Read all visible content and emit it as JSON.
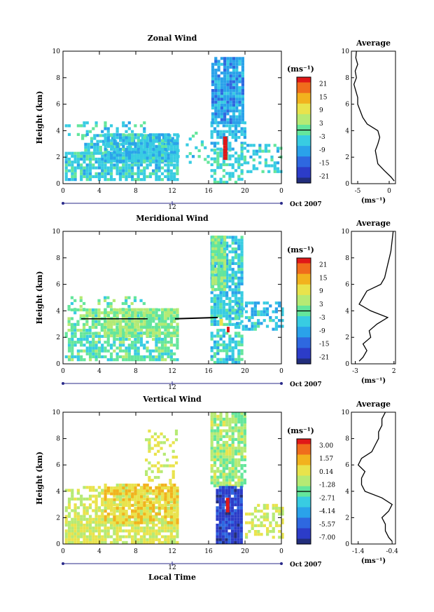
{
  "chart_data": [
    {
      "type": "heatmap",
      "title": "Zonal Wind",
      "ylabel": "Height (km)",
      "xlabel": "",
      "x_ticks": [
        "0",
        "4",
        "8",
        "12",
        "16",
        "20",
        "0"
      ],
      "y_ticks": [
        "0",
        "2",
        "4",
        "6",
        "8",
        "10"
      ],
      "xlim": [
        0,
        24
      ],
      "ylim": [
        0,
        10
      ],
      "date_marker": "12",
      "date_label": "Oct 2007",
      "colorbar": {
        "unit": "(ms⁻¹)",
        "ticks": [
          "21",
          "15",
          "9",
          "3",
          "-3",
          "-9",
          "-15",
          "-21"
        ],
        "range": [
          -24,
          24
        ]
      },
      "average_profile": {
        "title": "Average",
        "xlabel": "(ms⁻¹)",
        "x_ticks": [
          "-5",
          "0"
        ],
        "y_ticks": [
          "0",
          "2",
          "4",
          "6",
          "8",
          "10"
        ],
        "xlim": [
          -6,
          1
        ],
        "heights": [
          0.2,
          0.5,
          1.0,
          1.5,
          2.0,
          2.5,
          3.0,
          3.5,
          4.0,
          4.5,
          5.0,
          5.5,
          6.0,
          6.5,
          7.0,
          7.5,
          8.0,
          8.5,
          9.0,
          9.5,
          10.0
        ],
        "values": [
          0.8,
          0.3,
          -0.8,
          -1.8,
          -2.0,
          -2.2,
          -1.8,
          -1.5,
          -1.8,
          -3.5,
          -4.2,
          -4.6,
          -5.0,
          -5.0,
          -5.3,
          -5.6,
          -5.2,
          -5.4,
          -5.0,
          -5.3,
          -5.2
        ]
      }
    },
    {
      "type": "heatmap",
      "title": "Meridional Wind",
      "ylabel": "Height (km)",
      "xlabel": "",
      "x_ticks": [
        "0",
        "4",
        "8",
        "12",
        "16",
        "20",
        "0"
      ],
      "y_ticks": [
        "0",
        "2",
        "4",
        "6",
        "8",
        "10"
      ],
      "xlim": [
        0,
        24
      ],
      "ylim": [
        0,
        10
      ],
      "date_marker": "12",
      "date_label": "Oct 2007",
      "colorbar": {
        "unit": "(ms⁻¹)",
        "ticks": [
          "21",
          "15",
          "9",
          "3",
          "-3",
          "-9",
          "-15",
          "-21"
        ],
        "range": [
          -24,
          24
        ]
      },
      "average_profile": {
        "title": "Average",
        "xlabel": "(ms⁻¹)",
        "x_ticks": [
          "-3",
          "2"
        ],
        "y_ticks": [
          "0",
          "2",
          "4",
          "6",
          "8",
          "10"
        ],
        "xlim": [
          -3.5,
          2.2
        ],
        "heights": [
          0.2,
          0.5,
          1.0,
          1.5,
          2.0,
          2.5,
          3.0,
          3.5,
          4.0,
          4.5,
          5.0,
          5.5,
          6.0,
          6.5,
          7.0,
          7.5,
          8.0,
          8.5,
          9.0,
          9.5,
          10.0
        ],
        "values": [
          -2.5,
          -2.0,
          -1.5,
          -2.0,
          -1.0,
          -1.2,
          -0.2,
          1.2,
          -1.0,
          -2.5,
          -2.0,
          -1.5,
          0.3,
          0.8,
          1.0,
          1.2,
          1.4,
          1.6,
          1.7,
          1.8,
          1.9
        ]
      }
    },
    {
      "type": "heatmap",
      "title": "Vertical Wind",
      "ylabel": "Height (km)",
      "xlabel": "Local Time",
      "x_ticks": [
        "0",
        "4",
        "8",
        "12",
        "16",
        "20",
        "0"
      ],
      "y_ticks": [
        "0",
        "2",
        "4",
        "6",
        "8",
        "10"
      ],
      "xlim": [
        0,
        24
      ],
      "ylim": [
        0,
        10
      ],
      "date_marker": "12",
      "date_label": "Oct 2007",
      "colorbar": {
        "unit": "(ms⁻¹)",
        "ticks": [
          "3.00",
          "1.57",
          "0.14",
          "-1.28",
          "-2.71",
          "-4.14",
          "-5.57",
          "-7.00"
        ],
        "range": [
          -8.0,
          4.0
        ]
      },
      "average_profile": {
        "title": "Average",
        "xlabel": "(ms⁻¹)",
        "x_ticks": [
          "-1.4",
          "-0.4"
        ],
        "y_ticks": [
          "0",
          "2",
          "4",
          "6",
          "8",
          "10"
        ],
        "xlim": [
          -1.6,
          -0.3
        ],
        "heights": [
          0.2,
          0.5,
          1.0,
          1.5,
          2.0,
          2.5,
          3.0,
          3.5,
          4.0,
          4.5,
          5.0,
          5.5,
          6.0,
          6.5,
          7.0,
          7.5,
          8.0,
          8.5,
          9.0,
          9.5,
          10.0
        ],
        "values": [
          -0.4,
          -0.5,
          -0.6,
          -0.6,
          -0.7,
          -0.5,
          -0.4,
          -0.7,
          -1.2,
          -1.3,
          -1.3,
          -1.2,
          -1.4,
          -1.3,
          -1.0,
          -0.9,
          -0.8,
          -0.8,
          -0.7,
          -0.7,
          -0.6
        ]
      }
    }
  ]
}
